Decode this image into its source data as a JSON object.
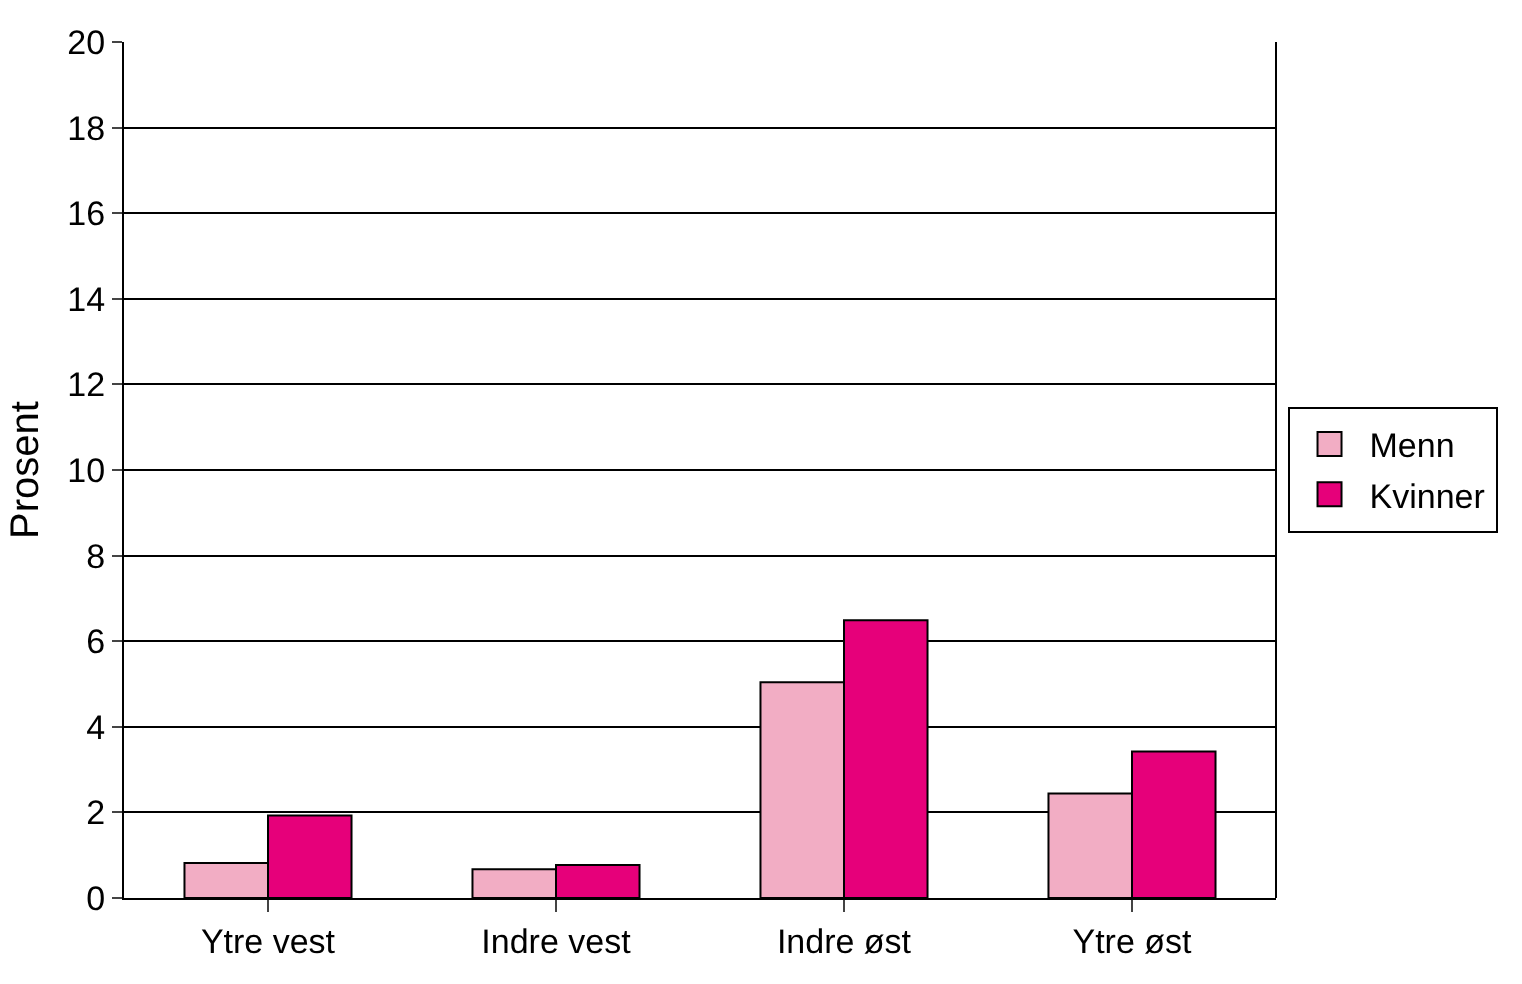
{
  "chart_data": {
    "type": "bar",
    "ylabel": "Prosent",
    "categories": [
      "Ytre vest",
      "Indre vest",
      "Indre øst",
      "Ytre øst"
    ],
    "series": [
      {
        "name": "Menn",
        "color": "#f2adc4",
        "values": [
          0.82,
          0.67,
          5.04,
          2.44
        ]
      },
      {
        "name": "Kvinner",
        "color": "#e6007a",
        "values": [
          1.93,
          0.77,
          6.49,
          3.42
        ]
      }
    ],
    "ylim": [
      0,
      20
    ],
    "yticks": [
      0,
      2,
      4,
      6,
      8,
      10,
      12,
      14,
      16,
      18,
      20
    ],
    "grid": "y",
    "legend": "right"
  }
}
